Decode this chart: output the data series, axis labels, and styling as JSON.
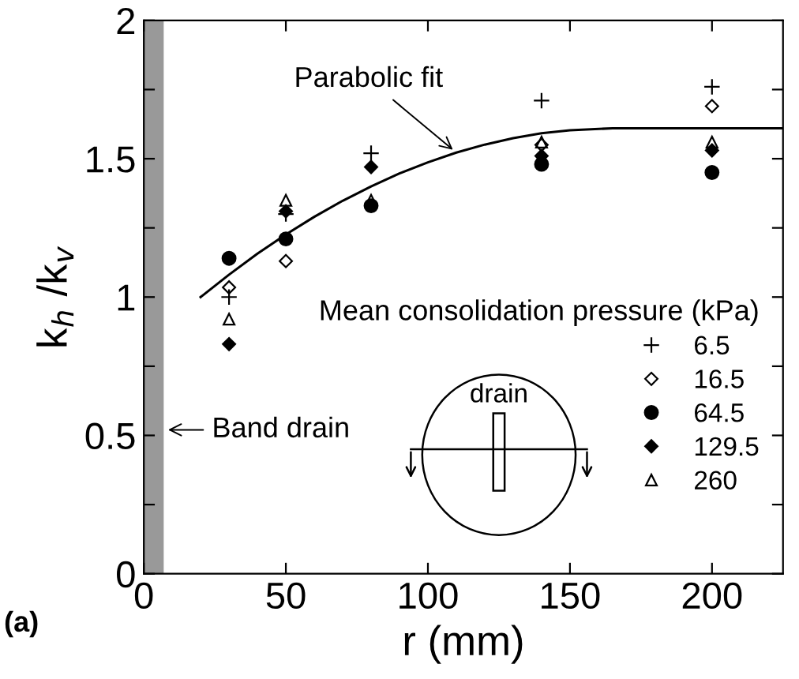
{
  "chart_data": {
    "type": "scatter",
    "xlabel": "r (mm)",
    "ylabel": "k$_{h}$ /k$_{v}$",
    "legend_title": "Mean consolidation pressure (kPa)",
    "x": [
      30,
      50,
      80,
      140,
      200
    ],
    "series": [
      {
        "name": "6.5",
        "color": "#000000",
        "marker": "cross",
        "values": [
          1.0,
          1.3,
          1.52,
          1.71,
          1.76
        ]
      },
      {
        "name": "16.5",
        "color": "#000000",
        "marker": "diamond",
        "values": [
          1.035,
          1.13,
          null,
          1.55,
          1.69
        ]
      },
      {
        "name": "64.5",
        "color": "#000000",
        "marker": "circle",
        "values": [
          1.14,
          1.21,
          1.33,
          1.48,
          1.45
        ]
      },
      {
        "name": "129.5",
        "color": "#000000",
        "marker": "diamond",
        "values": [
          0.83,
          1.31,
          1.47,
          1.51,
          1.53
        ]
      },
      {
        "name": "260",
        "color": "#000000",
        "marker": "triangle",
        "values": [
          0.92,
          1.35,
          1.35,
          1.56,
          1.56
        ]
      },
      {
        "type": "line",
        "color": "#000000",
        "marker": "none",
        "line_style": "solid",
        "x": [
          20,
          30,
          40,
          50,
          60,
          70,
          80,
          90,
          100,
          110,
          120,
          130,
          140,
          150,
          165,
          225
        ],
        "values": [
          1.0,
          1.081,
          1.157,
          1.226,
          1.29,
          1.348,
          1.4,
          1.447,
          1.487,
          1.522,
          1.551,
          1.574,
          1.592,
          1.603,
          1.61,
          1.61
        ]
      }
    ],
    "xlim": [
      0,
      225
    ],
    "xticks": [
      0,
      50,
      100,
      150,
      200
    ],
    "ylim": [
      0,
      2
    ],
    "yticks": [
      0,
      {
        "value": 0.25,
        "label": null
      },
      0.5,
      {
        "value": 0.75,
        "label": null
      },
      1,
      {
        "value": 1.25,
        "label": null
      },
      1.5,
      {
        "value": 1.75,
        "label": null
      },
      2
    ],
    "bands": [
      {
        "axis": "x",
        "from": 0,
        "to": 7,
        "label": "Band drain",
        "color": "#999999"
      }
    ],
    "annotations": [
      {
        "text": "Parabolic fit",
        "x": 110,
        "y": 1.522
      },
      "drain",
      "(a)"
    ],
    "legend": "bottom right",
    "grid": false
  }
}
